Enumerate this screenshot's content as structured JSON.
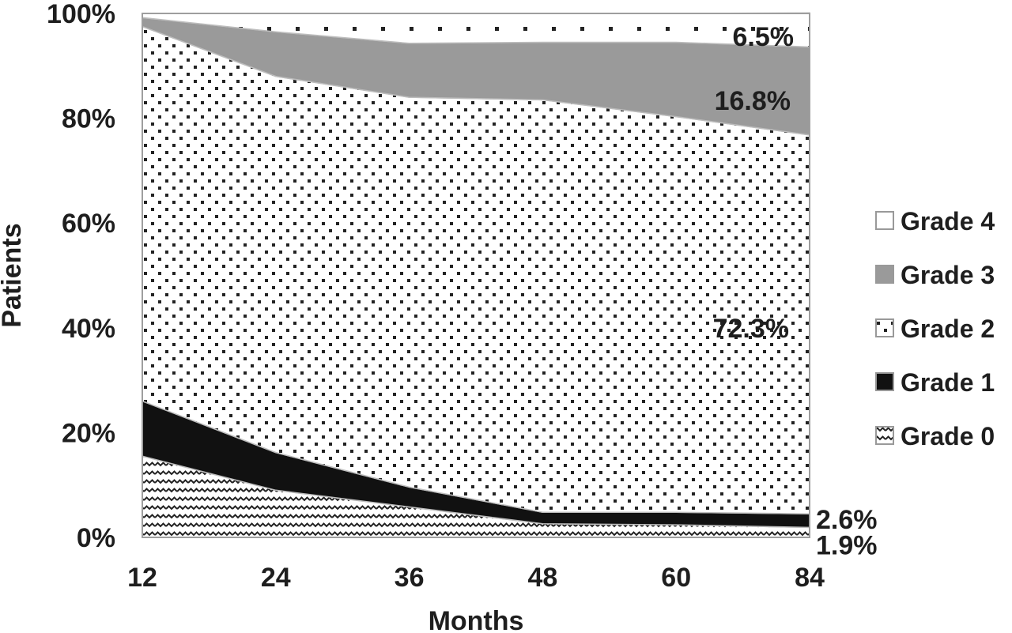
{
  "chart_data": {
    "type": "area",
    "stacked": true,
    "percent": true,
    "title": "",
    "xlabel": "Months",
    "ylabel": "Patients",
    "categories": [
      "12",
      "24",
      "36",
      "48",
      "60",
      "84"
    ],
    "y_ticks": [
      "0%",
      "20%",
      "40%",
      "60%",
      "80%",
      "100%"
    ],
    "ylim": [
      0,
      100
    ],
    "grid": false,
    "legend_position": "right",
    "series": [
      {
        "name": "Grade 0",
        "values": [
          15.5,
          9.0,
          5.8,
          2.6,
          2.4,
          1.9
        ],
        "pattern": "zigzag",
        "color": "#ffffff"
      },
      {
        "name": "Grade 1",
        "values": [
          10.5,
          7.2,
          3.8,
          2.2,
          2.4,
          2.6
        ],
        "pattern": "solid",
        "color": "#111111"
      },
      {
        "name": "Grade 2",
        "values": [
          71.5,
          71.8,
          74.4,
          78.7,
          75.5,
          72.3
        ],
        "pattern": "dots",
        "color": "#ffffff"
      },
      {
        "name": "Grade 3",
        "values": [
          1.7,
          8.5,
          10.3,
          11.0,
          14.2,
          16.8
        ],
        "pattern": "solid",
        "color": "#9a9a9a"
      },
      {
        "name": "Grade 4",
        "values": [
          0.8,
          3.5,
          5.7,
          5.5,
          5.5,
          6.5
        ],
        "pattern": "sparse-dots",
        "color": "#ffffff"
      }
    ],
    "annotations": [
      {
        "series": "Grade 4",
        "text": "6.5%"
      },
      {
        "series": "Grade 3",
        "text": "16.8%"
      },
      {
        "series": "Grade 2",
        "text": "72.3%"
      },
      {
        "series": "Grade 1",
        "text": "2.6%"
      },
      {
        "series": "Grade 0",
        "text": "1.9%"
      }
    ],
    "legend_order": [
      "Grade 4",
      "Grade 3",
      "Grade 2",
      "Grade 1",
      "Grade 0"
    ]
  }
}
